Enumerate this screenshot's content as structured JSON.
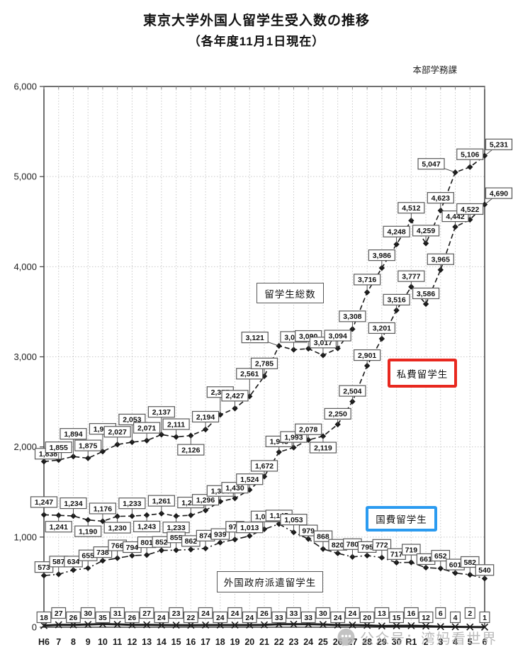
{
  "page": {
    "title_line1": "東京大学外国人留学生受入数の推移",
    "title_line2": "（各年度11月1日現在）",
    "credit": "本部学務課",
    "watermark_text": "公众号：湾妈看世界",
    "watermark_icon": "wechat-icon"
  },
  "colors": {
    "series_line": "#1a1a1a",
    "grid": "#c9c9c9",
    "plot_border": "#404040",
    "label_box_border": "#595959",
    "label_box_fill": "#ffffff",
    "total_box_border": "#595959",
    "private_box_border": "#e8281f",
    "government_box_border": "#2b9bf0",
    "foreign_box_border": "#595959",
    "watermark": "#b0b0b0"
  },
  "chart_data": {
    "type": "line",
    "title": "東京大学外国人留学生受入数の推移（各年度11月1日現在）",
    "xlabel": "",
    "ylabel": "",
    "ylim": [
      0,
      6000
    ],
    "y_ticks": [
      0,
      1000,
      2000,
      3000,
      4000,
      5000,
      6000
    ],
    "grid": true,
    "legend_position": "floating-boxes-inside-plot",
    "categories": [
      "H6",
      "7",
      "8",
      "9",
      "10",
      "11",
      "12",
      "13",
      "14",
      "15",
      "16",
      "17",
      "18",
      "19",
      "20",
      "21",
      "22",
      "23",
      "24",
      "25",
      "26",
      "27",
      "28",
      "29",
      "30",
      "R1",
      "2",
      "3",
      "4",
      "5",
      "6"
    ],
    "series": [
      {
        "key": "total",
        "name": "留学生総数",
        "line_style": "dashed",
        "marker": "diamond",
        "values": [
          1838,
          1855,
          1894,
          1875,
          1949,
          2027,
          2053,
          2071,
          2137,
          2111,
          2126,
          2194,
          2357,
          2427,
          2561,
          2785,
          3121,
          3079,
          3090,
          3017,
          3094,
          3308,
          3716,
          3986,
          4248,
          4512,
          4259,
          4623,
          5047,
          5106,
          5231
        ],
        "label_sides": [
          "c",
          "a",
          "a",
          "a",
          "a",
          "a",
          "a",
          "a",
          "a",
          "a",
          "b",
          "a",
          "a",
          "a",
          "a",
          "a",
          "l",
          "a",
          "a",
          "a",
          "a",
          "a",
          "a",
          "a",
          "a",
          "a",
          "a",
          "a",
          "l",
          "a",
          "r"
        ]
      },
      {
        "key": "private",
        "name": "私費留学生",
        "line_style": "dashed",
        "marker": "diamond",
        "values": [
          1247,
          1241,
          1234,
          1190,
          1176,
          1230,
          1233,
          1243,
          1261,
          1233,
          1242,
          1296,
          1394,
          1430,
          1524,
          1672,
          1943,
          1993,
          2078,
          2119,
          2250,
          2504,
          2901,
          3201,
          3516,
          3777,
          3586,
          3965,
          4442,
          4522,
          4690
        ],
        "label_sides": [
          "a",
          "b",
          "a",
          "b",
          "a",
          "b",
          "a",
          "b",
          "a",
          "b",
          "a",
          "a",
          "a",
          "a",
          "a",
          "a",
          "a",
          "a",
          "a",
          "b",
          "a",
          "a",
          "a",
          "a",
          "a",
          "a",
          "a",
          "a",
          "a",
          "a",
          "r"
        ]
      },
      {
        "key": "government",
        "name": "国費留学生",
        "line_style": "dashdot",
        "marker": "diamond",
        "values": [
          573,
          587,
          634,
          655,
          738,
          766,
          794,
          801,
          852,
          855,
          862,
          874,
          939,
          973,
          1013,
          1087,
          1145,
          1053,
          979,
          868,
          820,
          780,
          795,
          772,
          717,
          719,
          661,
          652,
          601,
          582,
          540
        ],
        "label_sides": [
          "a",
          "a",
          "a",
          "a",
          "a",
          "a",
          "a",
          "a",
          "a",
          "a",
          "a",
          "a",
          "a",
          "a",
          "a",
          "a",
          "a",
          "a",
          "a",
          "a",
          "a",
          "a",
          "a",
          "a",
          "a",
          "a",
          "a",
          "a",
          "a",
          "a",
          "a"
        ]
      },
      {
        "key": "foreign-gov",
        "name": "外国政府派遣留学生",
        "line_style": "solid-thick",
        "marker": "x",
        "values": [
          18,
          27,
          26,
          30,
          35,
          31,
          26,
          27,
          24,
          23,
          22,
          24,
          24,
          24,
          24,
          26,
          33,
          33,
          33,
          30,
          24,
          24,
          20,
          13,
          15,
          16,
          12,
          6,
          4,
          2,
          1
        ],
        "label_sides": [
          "row",
          "row",
          "row",
          "row",
          "row",
          "row",
          "row",
          "row",
          "row",
          "row",
          "row",
          "row",
          "row",
          "row",
          "row",
          "row",
          "row",
          "row",
          "row",
          "row",
          "row",
          "row",
          "row",
          "row",
          "row",
          "row",
          "row",
          "row",
          "row",
          "row",
          "row"
        ]
      }
    ]
  }
}
